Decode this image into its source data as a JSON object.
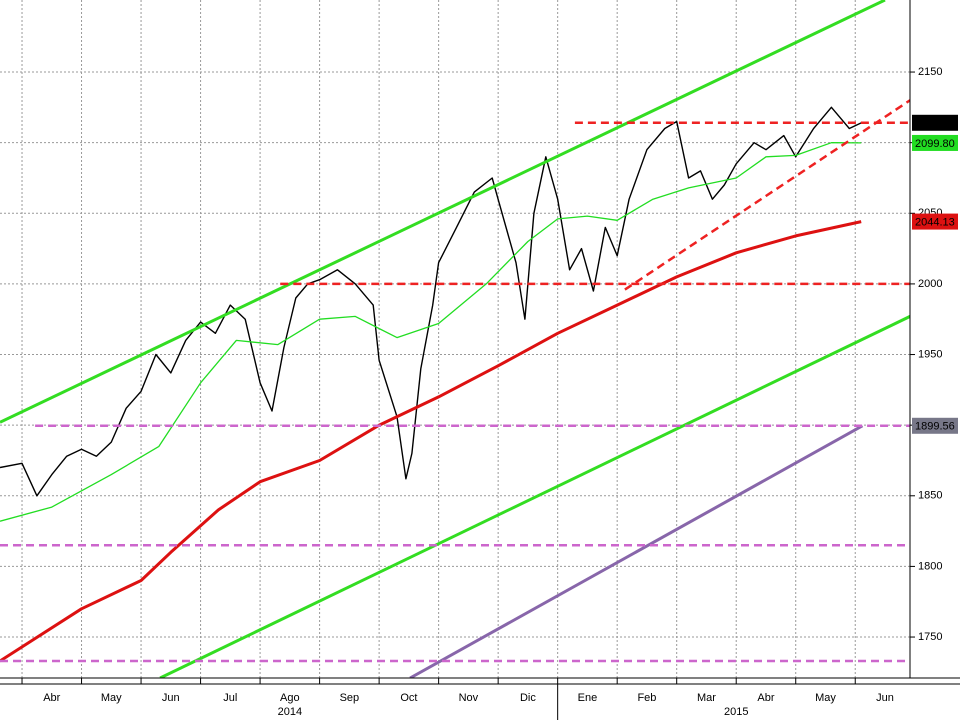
{
  "chart_data": {
    "type": "line",
    "xlim": [
      -0.37,
      14.92
    ],
    "ylim": [
      1721,
      2201
    ],
    "yticks": [
      1750,
      1800,
      1850,
      1900,
      1950,
      2000,
      2050,
      2100,
      2150
    ],
    "xticks": [
      {
        "value": 0,
        "label": "Abr"
      },
      {
        "value": 1,
        "label": "May"
      },
      {
        "value": 2,
        "label": "Jun"
      },
      {
        "value": 3,
        "label": "Jul"
      },
      {
        "value": 4,
        "label": "Ago"
      },
      {
        "value": 5,
        "label": "Sep"
      },
      {
        "value": 6,
        "label": "Oct"
      },
      {
        "value": 7,
        "label": "Nov"
      },
      {
        "value": 8,
        "label": "Dic"
      },
      {
        "value": 9,
        "label": "Ene"
      },
      {
        "value": 10,
        "label": "Feb"
      },
      {
        "value": 11,
        "label": "Mar"
      },
      {
        "value": 12,
        "label": "Abr"
      },
      {
        "value": 13,
        "label": "May"
      },
      {
        "value": 14,
        "label": "Jun"
      }
    ],
    "years": [
      {
        "value": 4,
        "label": "2014"
      },
      {
        "value": 11.5,
        "label": "2015"
      }
    ],
    "grid": true,
    "series": [
      {
        "color": "#000000",
        "width": 1.4,
        "x": [
          -0.37,
          0,
          0.25,
          0.5,
          0.75,
          1,
          1.25,
          1.5,
          1.75,
          2,
          2.25,
          2.5,
          2.75,
          3,
          3.25,
          3.5,
          3.75,
          4,
          4.2,
          4.4,
          4.6,
          4.8,
          5,
          5.3,
          5.6,
          5.9,
          6,
          6.3,
          6.45,
          6.55,
          6.7,
          6.9,
          7,
          7.3,
          7.6,
          7.9,
          8,
          8.3,
          8.45,
          8.6,
          8.8,
          9,
          9.2,
          9.4,
          9.6,
          9.8,
          10,
          10.2,
          10.5,
          10.8,
          11,
          11.2,
          11.4,
          11.6,
          11.8,
          12,
          12.3,
          12.5,
          12.8,
          13,
          13.3,
          13.6,
          13.9,
          14.1
        ],
        "values": [
          1870,
          1873,
          1850,
          1865,
          1878,
          1883,
          1878,
          1888,
          1912,
          1924,
          1950,
          1937,
          1960,
          1973,
          1965,
          1985,
          1975,
          1930,
          1910,
          1955,
          1990,
          2000,
          2003,
          2010,
          2000,
          1985,
          1946,
          1906,
          1862,
          1880,
          1940,
          1985,
          2015,
          2040,
          2065,
          2075,
          2060,
          2015,
          1975,
          2050,
          2090,
          2060,
          2010,
          2025,
          1995,
          2040,
          2020,
          2060,
          2095,
          2110,
          2115,
          2075,
          2080,
          2060,
          2070,
          2085,
          2100,
          2095,
          2105,
          2090,
          2110,
          2125,
          2110,
          2114
        ]
      },
      {
        "color": "#22dd22",
        "width": 1.3,
        "x": [
          -0.37,
          0.5,
          1.5,
          2.3,
          3,
          3.6,
          4.3,
          5,
          5.6,
          6.3,
          7,
          7.8,
          8.5,
          9,
          9.5,
          10,
          10.6,
          11.2,
          12,
          12.5,
          13,
          13.6,
          14.1
        ],
        "values": [
          1832,
          1842,
          1865,
          1885,
          1930,
          1960,
          1957,
          1975,
          1977,
          1962,
          1972,
          2000,
          2030,
          2046,
          2048,
          2045,
          2060,
          2068,
          2075,
          2090,
          2091,
          2100,
          2099.8
        ]
      },
      {
        "color": "#dd1111",
        "width": 3,
        "x": [
          -0.37,
          1,
          2,
          2.5,
          3.3,
          4,
          5,
          6,
          7,
          8,
          9,
          10,
          11,
          12,
          13,
          14.1
        ],
        "values": [
          1733,
          1770,
          1790,
          1810,
          1840,
          1860,
          1875,
          1900,
          1920,
          1942,
          1965,
          1985,
          2005,
          2022,
          2034,
          2044.13
        ]
      },
      {
        "color": "#33dd22",
        "width": 3,
        "x": [
          -0.37,
          14.5
        ],
        "values": [
          1902,
          2201
        ]
      },
      {
        "color": "#33dd22",
        "width": 3,
        "x": [
          2.32,
          14.92
        ],
        "values": [
          1721,
          1977
        ]
      },
      {
        "color": "#8866aa",
        "width": 3,
        "x": [
          6.52,
          14.12
        ],
        "values": [
          1721,
          1899.56
        ]
      },
      {
        "color": "#ee2222",
        "width": 2.5,
        "dash": true,
        "x": [
          9.29,
          14.92
        ],
        "values": [
          2114.07,
          2114.07
        ]
      },
      {
        "color": "#ee2222",
        "width": 2.5,
        "dash": true,
        "x": [
          4.34,
          14.92
        ],
        "values": [
          2000,
          2000
        ]
      },
      {
        "color": "#ee2222",
        "width": 2.5,
        "dash": true,
        "x": [
          10.13,
          14.92
        ],
        "values": [
          1996,
          2130
        ]
      },
      {
        "color": "#cc66cc",
        "width": 2.5,
        "dash": true,
        "x": [
          0.22,
          14.92
        ],
        "values": [
          1899.56,
          1899.56
        ]
      },
      {
        "color": "#cc66cc",
        "width": 2.5,
        "dash": true,
        "x": [
          -0.37,
          14.92
        ],
        "values": [
          1815,
          1815
        ]
      },
      {
        "color": "#cc66cc",
        "width": 2.5,
        "dash": true,
        "x": [
          -0.37,
          14.92
        ],
        "values": [
          1733,
          1733
        ]
      }
    ],
    "tags": [
      {
        "value": 2114.07,
        "color": "#000000",
        "text_color": "#ffffff"
      },
      {
        "value": 2099.8,
        "label": "2099.80",
        "color": "#22dd22",
        "text_color": "#000000"
      },
      {
        "value": 2044.13,
        "color": "#dd1111",
        "text_color": "#ffffff"
      },
      {
        "value": 1899.56,
        "color": "#777788",
        "text_color": "#ffffff"
      }
    ]
  }
}
